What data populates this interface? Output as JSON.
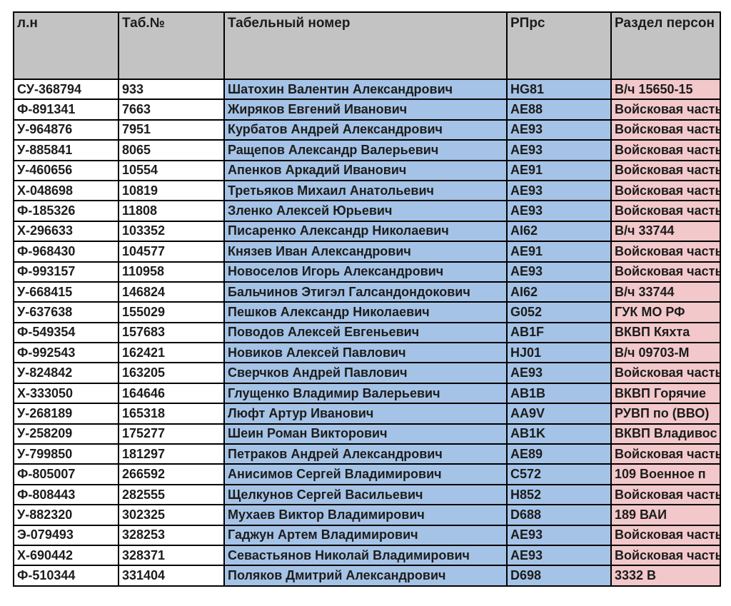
{
  "colors": {
    "page_bg": "#ffffff",
    "header_bg": "#c3c3c3",
    "id_cell_bg": "#ffffff",
    "name_rprs_bg": "#a5c3e6",
    "section_bg": "#f2c8ca",
    "border": "#000000",
    "text": "#1c1c1c"
  },
  "table": {
    "columns": [
      {
        "key": "ln",
        "label": "л.н"
      },
      {
        "key": "tab",
        "label": "Таб.№"
      },
      {
        "key": "name",
        "label": "Табельный номер"
      },
      {
        "key": "rprs",
        "label": "РПрс"
      },
      {
        "key": "section",
        "label": "Раздел персон"
      }
    ],
    "rows": [
      {
        "ln": "СУ-368794",
        "tab": "933",
        "name": "Шатохин Валентин Александрович",
        "rprs": "HG81",
        "section": "В/ч 15650-15"
      },
      {
        "ln": "Ф-891341",
        "tab": "7663",
        "name": "Жиряков Евгений Иванович",
        "rprs": "AE88",
        "section": "Войсковая часть"
      },
      {
        "ln": "У-964876",
        "tab": "7951",
        "name": "Курбатов Андрей Александрович",
        "rprs": "AE93",
        "section": "Войсковая часть"
      },
      {
        "ln": "У-885841",
        "tab": "8065",
        "name": "Ращепов Александр Валерьевич",
        "rprs": "AE93",
        "section": "Войсковая часть"
      },
      {
        "ln": "У-460656",
        "tab": "10554",
        "name": "Апенков Аркадий Иванович",
        "rprs": "AE91",
        "section": "Войсковая часть"
      },
      {
        "ln": "Х-048698",
        "tab": "10819",
        "name": "Третьяков Михаил Анатольевич",
        "rprs": "AE93",
        "section": "Войсковая часть"
      },
      {
        "ln": "Ф-185326",
        "tab": "11808",
        "name": "Зленко Алексей Юрьевич",
        "rprs": "AE93",
        "section": "Войсковая часть"
      },
      {
        "ln": "Х-296633",
        "tab": "103352",
        "name": "Писаренко Александр Николаевич",
        "rprs": "AI62",
        "section": "В/ч 33744"
      },
      {
        "ln": "Ф-968430",
        "tab": "104577",
        "name": "Князев Иван Александрович",
        "rprs": "AE91",
        "section": "Войсковая часть"
      },
      {
        "ln": "Ф-993157",
        "tab": "110958",
        "name": "Новоселов Игорь Александрович",
        "rprs": "AE93",
        "section": "Войсковая часть"
      },
      {
        "ln": "У-668415",
        "tab": "146824",
        "name": "Бальчинов Этигэл Галсандондокович",
        "rprs": "AI62",
        "section": "В/ч 33744"
      },
      {
        "ln": "У-637638",
        "tab": "155029",
        "name": "Пешков Александр Николаевич",
        "rprs": "G052",
        "section": "ГУК МО РФ"
      },
      {
        "ln": "Ф-549354",
        "tab": "157683",
        "name": "Поводов Алексей Евгеньевич",
        "rprs": "AB1F",
        "section": "ВКВП Кяхта"
      },
      {
        "ln": "Ф-992543",
        "tab": "162421",
        "name": "Новиков Алексей Павлович",
        "rprs": "HJ01",
        "section": "В/ч 09703-М"
      },
      {
        "ln": "У-824842",
        "tab": "163205",
        "name": "Сверчков Андрей Павлович",
        "rprs": "AE93",
        "section": "Войсковая часть"
      },
      {
        "ln": "Х-333050",
        "tab": "164646",
        "name": "Глущенко Владимир Валерьевич",
        "rprs": "AB1B",
        "section": "ВКВП Горячие"
      },
      {
        "ln": "У-268189",
        "tab": "165318",
        "name": "Люфт Артур Иванович",
        "rprs": "AA9V",
        "section": "РУВП по (ВВО)"
      },
      {
        "ln": "У-258209",
        "tab": "175277",
        "name": "Шеин Роман Викторович",
        "rprs": "AB1K",
        "section": "ВКВП Владивос"
      },
      {
        "ln": "У-799850",
        "tab": "181297",
        "name": "Петраков Андрей Александрович",
        "rprs": "AE89",
        "section": "Войсковая часть"
      },
      {
        "ln": "Ф-805007",
        "tab": "266592",
        "name": "Анисимов Сергей Владимирович",
        "rprs": "C572",
        "section": "109 Военное п"
      },
      {
        "ln": "Ф-808443",
        "tab": "282555",
        "name": "Щелкунов Сергей Васильевич",
        "rprs": "H852",
        "section": "Войсковая часть"
      },
      {
        "ln": "У-882320",
        "tab": "302325",
        "name": "Мухаев Виктор Владимирович",
        "rprs": "D688",
        "section": "189 ВАИ"
      },
      {
        "ln": "Э-079493",
        "tab": "328253",
        "name": "Гаджун Артем Владимирович",
        "rprs": "AE93",
        "section": "Войсковая часть"
      },
      {
        "ln": "Х-690442",
        "tab": "328371",
        "name": "Севастьянов Николай Владимирович",
        "rprs": "AE93",
        "section": "Войсковая часть"
      }
    ],
    "partial_row": {
      "ln": "Ф-510344",
      "tab": "331404",
      "name": "Поляков Дмитрий Александрович",
      "rprs": "D698",
      "section": "3332 В"
    }
  }
}
